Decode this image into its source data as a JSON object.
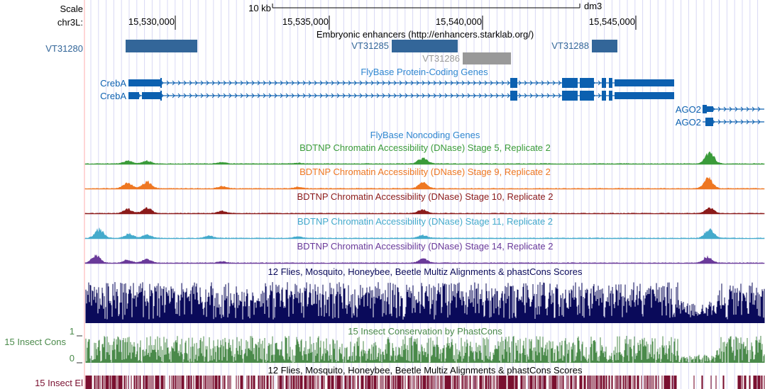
{
  "browser": {
    "ruler": {
      "scale_label": "Scale",
      "chrom_label": "chr3L:",
      "scale_bar_label": "10 kb",
      "assembly": "dm3",
      "tick_labels": [
        "15,530,000",
        "15,535,000",
        "15,540,000",
        "15,545,000"
      ]
    },
    "enhancers": {
      "title": "Embryonic enhancers (http://enhancers.starklab.org/)",
      "items": [
        {
          "name": "VT31280",
          "color": "#336699"
        },
        {
          "name": "VT31285",
          "color": "#336699"
        },
        {
          "name": "VT31286",
          "color": "#999999"
        },
        {
          "name": "VT31288",
          "color": "#336699"
        }
      ]
    },
    "genes": {
      "title": "FlyBase Protein-Coding Genes",
      "color": "#0c60b0",
      "transcripts": [
        {
          "name": "CrebA"
        },
        {
          "name": "CrebA"
        },
        {
          "name": "AGO2"
        },
        {
          "name": "AGO2"
        }
      ]
    },
    "noncoding": {
      "title": "FlyBase Noncoding Genes",
      "color": "#2f86d0"
    },
    "dnase": [
      {
        "title": "BDTNP Chromatin Accessibility (DNase) Stage 5, Replicate 2",
        "color": "#3a9b3a"
      },
      {
        "title": "BDTNP Chromatin Accessibility (DNase) Stage 9, Replicate 2",
        "color": "#ee7722"
      },
      {
        "title": "BDTNP Chromatin Accessibility (DNase) Stage 10, Replicate 2",
        "color": "#8b1a1a"
      },
      {
        "title": "BDTNP Chromatin Accessibility (DNase) Stage 11, Replicate 2",
        "color": "#44aacc"
      },
      {
        "title": "BDTNP Chromatin Accessibility (DNase) Stage 14, Replicate 2",
        "color": "#6a3a9a"
      }
    ],
    "multiz": {
      "title": "12 Flies, Mosquito, Honeybee, Beetle Multiz Alignments & phastCons Scores",
      "color": "#0a0a5a"
    },
    "insect_cons": {
      "title": "15 Insect Conservation by PhastCons",
      "side_label": "15 Insect Cons",
      "ymax_label": "1",
      "ymin_label": "0",
      "color": "#4a8a4a"
    },
    "insect_el": {
      "title": "12 Flies, Mosquito, Honeybee, Beetle Multiz Alignments & phastCons Scores",
      "side_label": "15 Insect El",
      "color": "#7a1030"
    }
  }
}
